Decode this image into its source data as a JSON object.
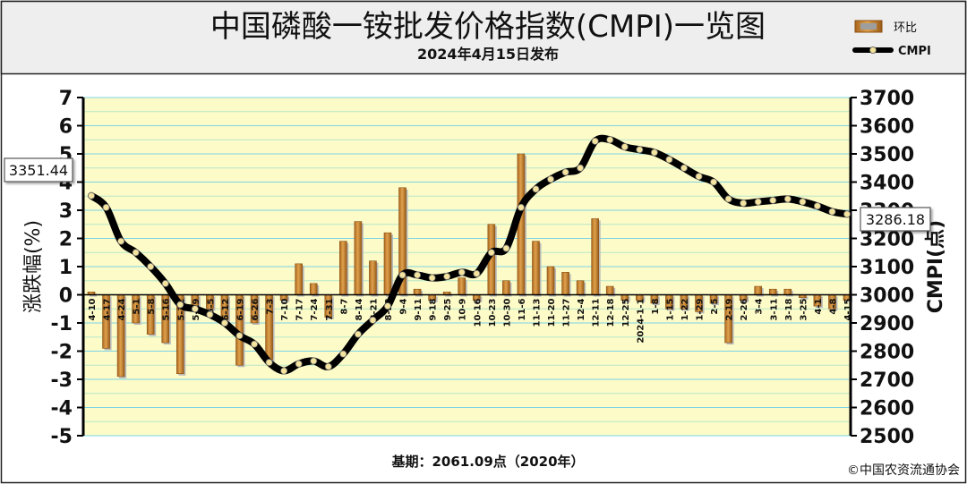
{
  "chart_data": {
    "type": "bar+line",
    "title": "中国磷酸一铵批发价格指数(CMPI)一览图",
    "subtitle": "2024年4月15日发布",
    "left_axis_label": "涨跌幅(%)",
    "right_axis_label": "CMPI(点)",
    "left_ylim": [
      -5,
      7
    ],
    "right_ylim": [
      2500,
      3700
    ],
    "left_ticks": [
      "7",
      "6",
      "5",
      "4",
      "3",
      "2",
      "1",
      "0",
      "-1",
      "-2",
      "-3",
      "-4",
      "-5"
    ],
    "right_ticks": [
      "3700",
      "3600",
      "3500",
      "3400",
      "3300",
      "3200",
      "3100",
      "3000",
      "2900",
      "2800",
      "2700",
      "2600",
      "2500"
    ],
    "legend": {
      "bar": "环比",
      "line": "CMPI",
      "placement": "top-right"
    },
    "footnote": "基期：2061.09点（2020年）",
    "copyright": "©中国农资流通协会",
    "start_value_label": "3351.44",
    "end_value_label": "3286.18",
    "categories": [
      "4-10",
      "4-17",
      "4-24",
      "5-1",
      "5-8",
      "5-16",
      "5-22",
      "5-29",
      "6-5",
      "6-12",
      "6-19",
      "6-26",
      "7-3",
      "7-10",
      "7-17",
      "7-24",
      "7-31",
      "8-7",
      "8-14",
      "8-21",
      "8-28",
      "9-4",
      "9-11",
      "9-18",
      "9-25",
      "10-9",
      "10-16",
      "10-23",
      "10-30",
      "11-6",
      "11-13",
      "11-20",
      "11-27",
      "12-4",
      "12-11",
      "12-18",
      "12-25",
      "2024-1-1",
      "1-8",
      "1-15",
      "1-22",
      "1-29",
      "2-5",
      "2-19",
      "2-26",
      "3-4",
      "3-11",
      "3-18",
      "3-25",
      "4-1",
      "4-8",
      "4-15"
    ],
    "bar_values": [
      0.1,
      -1.9,
      -2.9,
      -1.0,
      -1.4,
      -1.7,
      -2.8,
      -0.5,
      -0.5,
      -0.9,
      -2.5,
      -1.0,
      -2.3,
      -0.2,
      1.1,
      0.4,
      -0.8,
      1.9,
      2.6,
      1.2,
      2.2,
      3.8,
      0.2,
      -0.2,
      0.1,
      0.6,
      -0.2,
      2.5,
      0.5,
      5.0,
      1.9,
      1.0,
      0.8,
      0.5,
      2.7,
      0.3,
      -0.2,
      -0.2,
      -0.3,
      -0.5,
      -0.5,
      -0.6,
      -0.3,
      -1.7,
      -0.2,
      0.3,
      0.2,
      0.2,
      -0.1,
      -0.4,
      -0.5,
      -0.2
    ],
    "cmpi_values": [
      3351.44,
      3310,
      3190,
      3150,
      3100,
      3040,
      2965,
      2950,
      2930,
      2900,
      2855,
      2825,
      2760,
      2730,
      2755,
      2765,
      2745,
      2790,
      2860,
      2910,
      2960,
      3070,
      3070,
      3060,
      3065,
      3080,
      3075,
      3150,
      3165,
      3310,
      3375,
      3410,
      3435,
      3450,
      3545,
      3550,
      3525,
      3515,
      3505,
      3480,
      3450,
      3420,
      3400,
      3340,
      3325,
      3330,
      3335,
      3340,
      3330,
      3315,
      3295,
      3286.18
    ]
  }
}
